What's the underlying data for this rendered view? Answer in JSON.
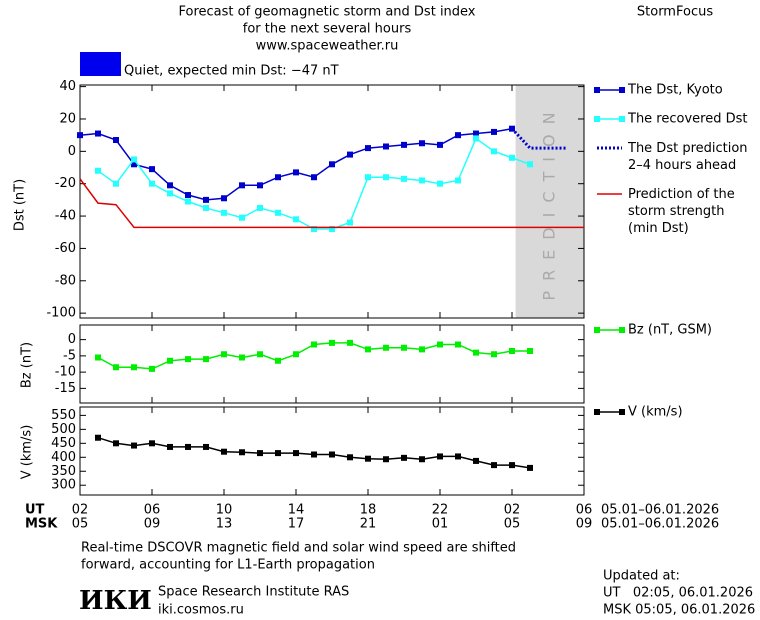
{
  "header": {
    "title_lines": [
      "Forecast of geomagnetic storm and Dst index",
      "for the next several hours",
      "www.spaceweather.ru"
    ],
    "brand": "StormFocus",
    "status": "Quiet, expected min Dst: −47 nT",
    "status_color": "#0000ee"
  },
  "time_axis": {
    "xlim": [
      0,
      28
    ],
    "rows": [
      {
        "label": "UT",
        "range": "05.01–06.01.2026",
        "ticks": [
          {
            "value": 0,
            "label": "02"
          },
          {
            "value": 4,
            "label": "06"
          },
          {
            "value": 8,
            "label": "10"
          },
          {
            "value": 12,
            "label": "14"
          },
          {
            "value": 16,
            "label": "18"
          },
          {
            "value": 20,
            "label": "22"
          },
          {
            "value": 24,
            "label": "02"
          },
          {
            "value": 28,
            "label": "06"
          }
        ]
      },
      {
        "label": "MSK",
        "range": "05.01–06.01.2026",
        "ticks": [
          {
            "value": 0,
            "label": "05"
          },
          {
            "value": 4,
            "label": "09"
          },
          {
            "value": 8,
            "label": "13"
          },
          {
            "value": 12,
            "label": "17"
          },
          {
            "value": 16,
            "label": "21"
          },
          {
            "value": 20,
            "label": "01"
          },
          {
            "value": 24,
            "label": "05"
          },
          {
            "value": 28,
            "label": "09"
          }
        ]
      }
    ]
  },
  "chart_data": [
    {
      "type": "line",
      "ylabel": "Dst (nT)",
      "ylim": [
        -103,
        41
      ],
      "yticks": [
        40,
        20,
        0,
        -20,
        -40,
        -60,
        -80,
        -100
      ],
      "shaded_region": {
        "xlim": [
          24.2,
          28
        ],
        "label": "PREDICTION",
        "color": "#d9d9d9"
      },
      "series": [
        {
          "name": "The Dst, Kyoto",
          "color": "#0000cc",
          "line_style": "solid",
          "markers": true,
          "x": [
            0,
            1,
            2,
            3,
            4,
            5,
            6,
            7,
            8,
            9,
            10,
            11,
            12,
            13,
            14,
            15,
            16,
            17,
            18,
            19,
            20,
            21,
            22,
            23,
            24
          ],
          "values": [
            10,
            11,
            7,
            -8,
            -11,
            -21,
            -27,
            -30,
            -29,
            -21,
            -21,
            -16,
            -13,
            -16,
            -8,
            -2,
            2,
            3,
            4,
            5,
            4,
            10,
            11,
            12,
            14
          ]
        },
        {
          "name": "The recovered Dst",
          "color": "#22ffff",
          "line_style": "solid",
          "markers": true,
          "x": [
            1,
            2,
            3,
            4,
            5,
            6,
            7,
            8,
            9,
            10,
            11,
            12,
            13,
            14,
            15,
            16,
            17,
            18,
            19,
            20,
            21,
            22,
            23,
            24,
            25
          ],
          "values": [
            -12,
            -20,
            -5,
            -20,
            -26,
            -31,
            -35,
            -38,
            -41,
            -35,
            -38,
            -42,
            -48,
            -48,
            -44,
            -16,
            -16,
            -17,
            -18,
            -20,
            -18,
            8,
            0,
            -4,
            -8
          ]
        },
        {
          "name": "The Dst prediction\n2–4 hours ahead",
          "color": "#0000cc",
          "line_style": "dotted",
          "markers": false,
          "x": [
            24,
            25,
            27
          ],
          "values": [
            14,
            2,
            2
          ]
        },
        {
          "name": "Prediction of the\nstorm strength\n(min Dst)",
          "color": "#dd0000",
          "line_style": "solid",
          "markers": false,
          "x": [
            0,
            1,
            2,
            3,
            28
          ],
          "values": [
            -17,
            -32,
            -33,
            -47,
            -47
          ]
        }
      ]
    },
    {
      "type": "line",
      "ylabel": "Bz (nT)",
      "ylim": [
        -19.5,
        4.5
      ],
      "yticks": [
        0,
        -5,
        -10,
        -15
      ],
      "series": [
        {
          "name": "Bz (nT, GSM)",
          "color": "#00ee00",
          "line_style": "solid",
          "markers": true,
          "x": [
            1,
            2,
            3,
            4,
            5,
            6,
            7,
            8,
            9,
            10,
            11,
            12,
            13,
            14,
            15,
            16,
            17,
            18,
            19,
            20,
            21,
            22,
            23,
            24,
            25
          ],
          "values": [
            -5.5,
            -8.5,
            -8.5,
            -9,
            -6.5,
            -6,
            -6,
            -4.5,
            -5.5,
            -4.5,
            -6.5,
            -4.5,
            -1.5,
            -1,
            -1,
            -3,
            -2.5,
            -2.5,
            -3,
            -1.5,
            -1.5,
            -4,
            -4.5,
            -3.5,
            -3.5
          ]
        }
      ]
    },
    {
      "type": "line",
      "ylabel": "V (km/s)",
      "ylim": [
        265,
        580
      ],
      "yticks": [
        550,
        500,
        450,
        400,
        350,
        300
      ],
      "series": [
        {
          "name": "V (km/s)",
          "color": "#000000",
          "line_style": "solid",
          "markers": true,
          "x": [
            1,
            2,
            3,
            4,
            5,
            6,
            7,
            8,
            9,
            10,
            11,
            12,
            13,
            14,
            15,
            16,
            17,
            18,
            19,
            20,
            21,
            22,
            23,
            24,
            25
          ],
          "values": [
            470,
            450,
            442,
            450,
            437,
            437,
            437,
            420,
            418,
            415,
            415,
            415,
            410,
            410,
            400,
            395,
            393,
            398,
            393,
            403,
            403,
            387,
            372,
            372,
            362
          ]
        }
      ]
    }
  ],
  "footer": {
    "note_lines": [
      "Real-time DSCOVR magnetic field and solar wind speed are shifted",
      "forward, accounting for L1-Earth propagation"
    ],
    "logo": "ИКИ",
    "institute": "Space Research Institute RAS",
    "site": "iki.cosmos.ru",
    "updated_lines": [
      "Updated at:",
      "UT   02:05, 06.01.2026",
      "MSK 05:05, 06.01.2026"
    ]
  }
}
